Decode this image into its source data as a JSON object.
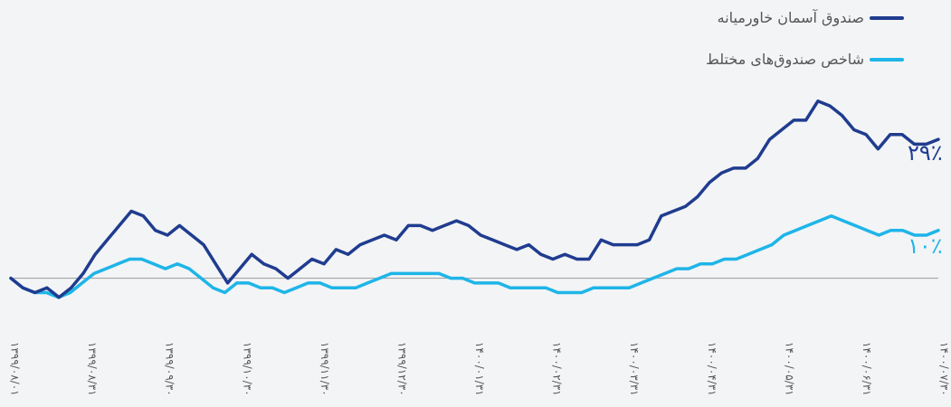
{
  "chart_data": {
    "type": "line",
    "x_tick_labels": [
      "۱۳۹۹/۰۸/۰۱",
      "۱۳۹۹/۰۸/۳۱",
      "۱۳۹۹/۰۹/۳۰",
      "۱۳۹۹/۱۰/۳۰",
      "۱۳۹۹/۱۱/۳۰",
      "۱۳۹۹/۱۲/۳۰",
      "۱۴۰۰/۰۱/۳۱",
      "۱۴۰۰/۰۲/۳۱",
      "۱۴۰۰/۰۳/۳۱",
      "۱۴۰۰/۰۴/۳۱",
      "۱۴۰۰/۰۵/۳۱",
      "۱۴۰۰/۰۶/۳۱",
      "۱۴۰۰/۰۷/۳۰"
    ],
    "baseline": 0,
    "ylim": [
      -8,
      43
    ],
    "series": [
      {
        "name": "صندوق آسمان خاورمیانه",
        "color": "#1f3c8f",
        "end_label": "۲۹٪",
        "values": [
          0,
          -2,
          -3,
          -2,
          -4,
          -2,
          1,
          5,
          8,
          11,
          14,
          13,
          10,
          9,
          11,
          9,
          7,
          3,
          -1,
          2,
          5,
          3,
          2,
          0,
          2,
          4,
          3,
          6,
          5,
          7,
          8,
          9,
          8,
          11,
          11,
          10,
          11,
          12,
          11,
          9,
          8,
          7,
          6,
          7,
          5,
          4,
          5,
          4,
          4,
          8,
          7,
          7,
          7,
          8,
          13,
          14,
          15,
          17,
          20,
          22,
          23,
          23,
          25,
          29,
          31,
          33,
          33,
          37,
          36,
          34,
          31,
          30,
          27,
          30,
          30,
          28,
          28,
          29
        ]
      },
      {
        "name": "شاخص صندوق‌های مختلط",
        "color": "#1eb5e8",
        "end_label": "۱۰٪",
        "values": [
          0,
          -2,
          -3,
          -3,
          -4,
          -3,
          -1,
          1,
          2,
          3,
          4,
          4,
          3,
          2,
          3,
          2,
          0,
          -2,
          -3,
          -1,
          -1,
          -2,
          -2,
          -3,
          -2,
          -1,
          -1,
          -2,
          -2,
          -2,
          -1,
          0,
          1,
          1,
          1,
          1,
          1,
          0,
          0,
          -1,
          -1,
          -1,
          -2,
          -2,
          -2,
          -2,
          -3,
          -3,
          -3,
          -2,
          -2,
          -2,
          -2,
          -1,
          0,
          1,
          2,
          2,
          3,
          3,
          4,
          4,
          5,
          6,
          7,
          9,
          10,
          11,
          12,
          13,
          12,
          11,
          10,
          9,
          10,
          10,
          9,
          9,
          10
        ]
      }
    ]
  }
}
